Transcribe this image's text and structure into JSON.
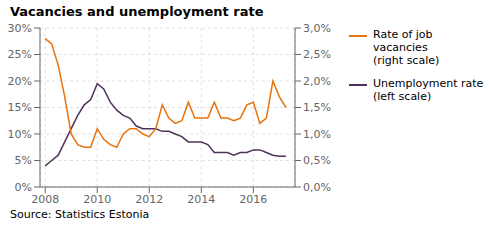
{
  "chart_data": {
    "type": "line",
    "title": "Vacancies and unemployment rate",
    "annotations": [
      "Source: Statistics Estonia"
    ],
    "x": [
      2008.0,
      2008.25,
      2008.5,
      2008.75,
      2009.0,
      2009.25,
      2009.5,
      2009.75,
      2010.0,
      2010.25,
      2010.5,
      2010.75,
      2011.0,
      2011.25,
      2011.5,
      2011.75,
      2012.0,
      2012.25,
      2012.5,
      2012.75,
      2013.0,
      2013.25,
      2013.5,
      2013.75,
      2014.0,
      2014.25,
      2014.5,
      2014.75,
      2015.0,
      2015.25,
      2015.5,
      2015.75,
      2016.0,
      2016.25,
      2016.5,
      2016.75,
      2017.0,
      2017.25
    ],
    "series": [
      {
        "name": "Unemployment rate\n(left scale)",
        "color": "#4d3358",
        "values": [
          4.0,
          5.0,
          6.0,
          8.5,
          11.0,
          13.5,
          15.5,
          16.5,
          19.5,
          18.5,
          16.0,
          14.5,
          13.5,
          13.0,
          11.5,
          11.0,
          11.0,
          11.0,
          10.5,
          10.5,
          10.0,
          9.5,
          8.5,
          8.5,
          8.5,
          8.0,
          6.5,
          6.5,
          6.5,
          6.0,
          6.5,
          6.5,
          7.0,
          7.0,
          6.5,
          6.0,
          5.8,
          5.8
        ]
      },
      {
        "name": "Rate of job vacancies\n(right scale)",
        "color": "#e8720c",
        "axis": "y2",
        "values": [
          2.8,
          2.7,
          2.3,
          1.7,
          1.0,
          0.8,
          0.75,
          0.75,
          1.1,
          0.9,
          0.8,
          0.75,
          1.0,
          1.1,
          1.1,
          1.0,
          0.95,
          1.1,
          1.55,
          1.3,
          1.2,
          1.25,
          1.6,
          1.3,
          1.3,
          1.3,
          1.6,
          1.3,
          1.3,
          1.25,
          1.3,
          1.55,
          1.6,
          1.2,
          1.3,
          2.0,
          1.7,
          1.5
        ]
      }
    ],
    "xlim": [
      2007.8,
      2017.6
    ],
    "xticks": [
      2008,
      2010,
      2012,
      2014,
      2016
    ],
    "ylim": [
      0,
      30
    ],
    "yticks": [
      {
        "value": 0,
        "label": "0%"
      },
      {
        "value": 5,
        "label": "5%"
      },
      {
        "value": 10,
        "label": "10%"
      },
      {
        "value": 15,
        "label": "15%"
      },
      {
        "value": 20,
        "label": "20%"
      },
      {
        "value": 25,
        "label": "25%"
      },
      {
        "value": 30,
        "label": "30%"
      }
    ],
    "y2lim": [
      0,
      3.0
    ],
    "y2ticks": [
      {
        "value": 0.0,
        "label": "0,0%"
      },
      {
        "value": 0.5,
        "label": "0,5%"
      },
      {
        "value": 1.0,
        "label": "1,0%"
      },
      {
        "value": 1.5,
        "label": "1,5%"
      },
      {
        "value": 2.0,
        "label": "2,0%"
      },
      {
        "value": 2.5,
        "label": "2,5%"
      },
      {
        "value": 3.0,
        "label": "3,0%"
      }
    ],
    "grid": true,
    "legend": "right"
  }
}
